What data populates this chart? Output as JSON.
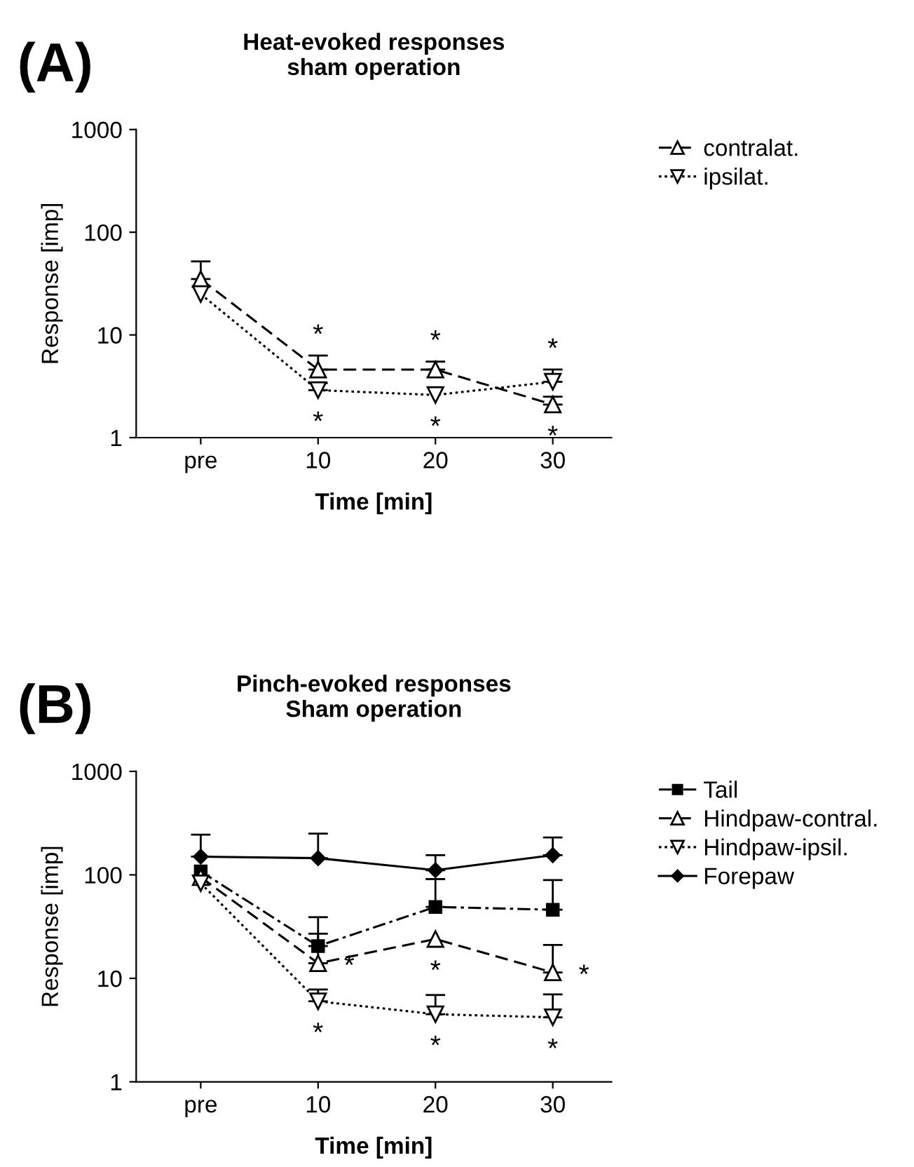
{
  "chart_data": [
    {
      "type": "line",
      "title": "Heat-evoked responses\nsham operation",
      "xlabel": "Time [min]",
      "ylabel": "Response [imp]",
      "categories": [
        "pre",
        "10",
        "20",
        "30"
      ],
      "log": true,
      "ylim": [
        1,
        1000
      ],
      "yticks": [
        1,
        10,
        100,
        1000
      ],
      "grid": false,
      "legend": "top right",
      "series": [
        {
          "name": "contralat.",
          "color": "#000000",
          "marker": "triangle",
          "line_style": "dashed",
          "values": [
            35,
            4.6,
            4.6,
            2.1
          ],
          "errors": [
            [
              35,
              52
            ],
            [
              4.6,
              6.3
            ],
            [
              4.6,
              5.5
            ],
            [
              2.1,
              2.5
            ]
          ]
        },
        {
          "name": "ipsilat.",
          "color": "#000000",
          "marker": "triangle_down",
          "line_style": "dotted",
          "values": [
            25,
            2.9,
            2.6,
            3.5
          ],
          "errors": [
            null,
            [
              2.9,
              3.4
            ],
            null,
            [
              3.5,
              4.6
            ]
          ]
        }
      ],
      "annotations": [
        "(A)",
        {
          "text": "*",
          "x": "10",
          "y": 4.6
        },
        {
          "text": "*",
          "x": "10",
          "y": 2.9
        },
        {
          "text": "*",
          "x": "20",
          "y": 4.6
        },
        {
          "text": "*",
          "x": "20",
          "y": 2.6
        },
        {
          "text": "*",
          "x": "30",
          "y": 3.5
        },
        {
          "text": "*",
          "x": "30",
          "y": 2.1
        }
      ]
    },
    {
      "type": "line",
      "title": "Pinch-evoked responses\nSham operation",
      "xlabel": "Time [min]",
      "ylabel": "Response [imp]",
      "categories": [
        "pre",
        "10",
        "20",
        "30"
      ],
      "log": true,
      "ylim": [
        1,
        1000
      ],
      "yticks": [
        1,
        10,
        100,
        1000
      ],
      "grid": false,
      "legend": "top right",
      "series": [
        {
          "name": "Tail",
          "color": "#000000",
          "marker": "square",
          "line_style": "dashdot",
          "values": [
            108,
            20.5,
            49,
            46
          ],
          "errors": [
            null,
            [
              20.5,
              39
            ],
            [
              49,
              91
            ],
            [
              46,
              89
            ]
          ]
        },
        {
          "name": "Hindpaw-contral.",
          "color": "#000000",
          "marker": "triangle",
          "line_style": "dashed",
          "values": [
            95,
            14,
            24,
            11.4
          ],
          "errors": [
            null,
            [
              14,
              27
            ],
            null,
            [
              11.4,
              21
            ]
          ]
        },
        {
          "name": "Hindpaw-ipsil.",
          "color": "#000000",
          "marker": "triangle_down",
          "line_style": "dotted",
          "values": [
            83,
            6,
            4.5,
            4.2
          ],
          "errors": [
            null,
            [
              6,
              7.8
            ],
            [
              4.5,
              6.9
            ],
            [
              4.2,
              7
            ]
          ]
        },
        {
          "name": "Forepaw",
          "color": "#000000",
          "marker": "diamond",
          "line_style": "solid",
          "values": [
            150,
            145,
            111,
            155
          ],
          "errors": [
            [
              150,
              245
            ],
            [
              145,
              250
            ],
            [
              111,
              155
            ],
            [
              155,
              230
            ]
          ]
        }
      ],
      "annotations": [
        "(B)",
        {
          "text": "*",
          "x": "10",
          "y": 14
        },
        {
          "text": "*",
          "x": "10",
          "y": 6
        },
        {
          "text": "*",
          "x": "20",
          "y": 24
        },
        {
          "text": "*",
          "x": "20",
          "y": 4.5
        },
        {
          "text": "*",
          "x": "30",
          "y": 11.4
        },
        {
          "text": "*",
          "x": "30",
          "y": 4.2
        }
      ]
    }
  ]
}
